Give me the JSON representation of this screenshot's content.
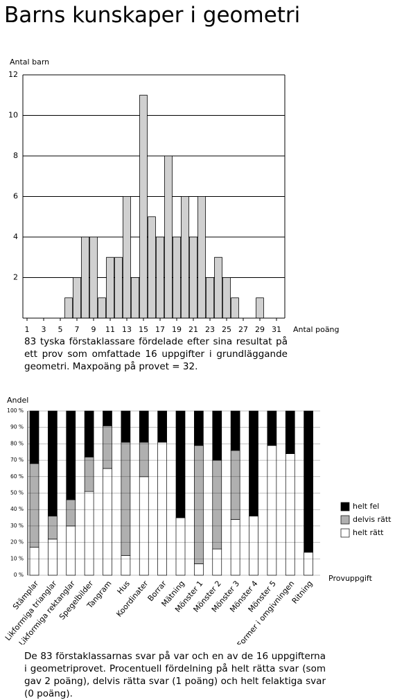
{
  "title": "Barns kunskaper i geometri",
  "chart_data": [
    {
      "type": "bar",
      "ylabel": "Antal barn",
      "xlabel": "Antal poäng",
      "x": [
        6,
        7,
        8,
        9,
        10,
        11,
        12,
        13,
        14,
        15,
        16,
        17,
        18,
        19,
        20,
        21,
        22,
        23,
        24,
        25,
        26,
        29
      ],
      "values": [
        1,
        2,
        4,
        4,
        1,
        3,
        3,
        6,
        2,
        11,
        5,
        4,
        8,
        4,
        6,
        4,
        6,
        2,
        3,
        2,
        1,
        1
      ],
      "color": "#d0d0d0",
      "xlim": [
        0.5,
        32
      ],
      "xticks": [
        1,
        3,
        5,
        7,
        9,
        11,
        13,
        15,
        17,
        19,
        21,
        23,
        25,
        27,
        29,
        31
      ],
      "ylim": [
        0,
        12
      ],
      "yticks": [
        2,
        4,
        6,
        8,
        10,
        12
      ],
      "grid": true,
      "caption": "83 tyska förstaklassare fördelade efter sina resultat på ett prov som omfattade 16 uppgifter i grundläggande geometri. Maxpoäng på provet = 32."
    },
    {
      "type": "stacked_bar",
      "ylabel": "Andel",
      "xlabel": "Provuppgift",
      "categories": [
        "Stämplar",
        "Likformiga trianglar",
        "Likformiga rektanglar",
        "Spegelbilder",
        "Tangram",
        "Hus",
        "Koordinater",
        "Borrar",
        "Mätning",
        "Mönster 1",
        "Mönster 2",
        "Mönster 3",
        "Mönster 4",
        "Mönster 5",
        "Former i omgivningen",
        "Ritning"
      ],
      "series": [
        {
          "name": "helt rätt",
          "color": "#ffffff",
          "values": [
            17,
            22,
            30,
            51,
            65,
            12,
            60,
            81,
            35,
            7,
            16,
            34,
            36,
            79,
            74,
            14
          ]
        },
        {
          "name": "delvis rätt",
          "color": "#b0b0b0",
          "values": [
            51,
            14,
            16,
            21,
            26,
            69,
            21,
            0,
            0,
            72,
            54,
            42,
            0,
            0,
            0,
            0
          ]
        },
        {
          "name": "helt fel",
          "color": "#000000",
          "values": [
            32,
            64,
            54,
            28,
            9,
            19,
            19,
            19,
            65,
            21,
            30,
            24,
            64,
            21,
            26,
            86
          ]
        }
      ],
      "ylim": [
        0,
        100
      ],
      "yticks": [
        {
          "value": 0,
          "label": "0 %"
        },
        {
          "value": 10,
          "label": "10 %"
        },
        {
          "value": 20,
          "label": "20 %"
        },
        {
          "value": 30,
          "label": "30 %"
        },
        {
          "value": 40,
          "label": "40 %"
        },
        {
          "value": 50,
          "label": "50 %"
        },
        {
          "value": 60,
          "label": "60 %"
        },
        {
          "value": 70,
          "label": "70 %"
        },
        {
          "value": 80,
          "label": "80 %"
        },
        {
          "value": 90,
          "label": "90 %"
        },
        {
          "value": 100,
          "label": "100 %"
        }
      ],
      "grid": true,
      "legend": "right",
      "caption": "De 83 förstaklassarnas svar på var och en av de 16 uppgifterna i geometriprovet. Procentuell fördelning på helt rätta svar (som gav 2 poäng), delvis rätta svar (1 poäng) och helt felaktiga svar (0 poäng)."
    }
  ]
}
